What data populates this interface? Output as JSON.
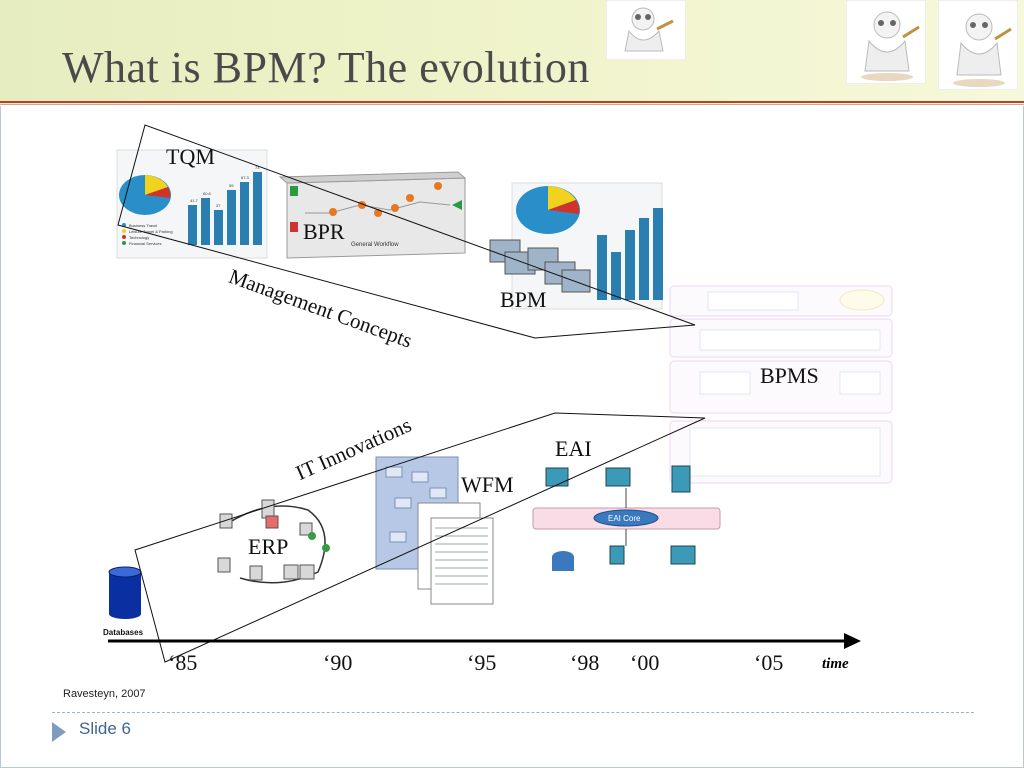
{
  "slide": {
    "title": "What is BPM? The evolution",
    "citation": "Ravesteyn, 2007",
    "slide_number": "Slide 6"
  },
  "concepts": {
    "tqm": "TQM",
    "bpr": "BPR",
    "bpr_caption": "General Workflow",
    "bpm": "BPM",
    "bpms": "BPMS",
    "management_concepts": "Management Concepts",
    "it_innovations": "IT Innovations",
    "eai": "EAI",
    "eai_core": "EAI Core",
    "wfm": "WFM",
    "erp": "ERP",
    "databases": "Databases"
  },
  "timeline": {
    "years": [
      "‘85",
      "‘90",
      "‘95",
      "‘98",
      "‘00",
      "‘05"
    ],
    "axis_label": "time"
  },
  "pie_legend": [
    "Business Travel",
    "Leisure Travel & Parking",
    "Technology",
    "Financial Services"
  ],
  "bar_labels": [
    "41.7",
    "60.6",
    "37",
    "59",
    "67.3",
    "73"
  ],
  "colors": {
    "accent_red": "#b8412a",
    "header_green": "#e6edc0",
    "slide_blue": "#3e6690"
  },
  "icons": [
    "panda-mascot-icon",
    "database-cylinder-icon",
    "slide-triangle-icon"
  ]
}
